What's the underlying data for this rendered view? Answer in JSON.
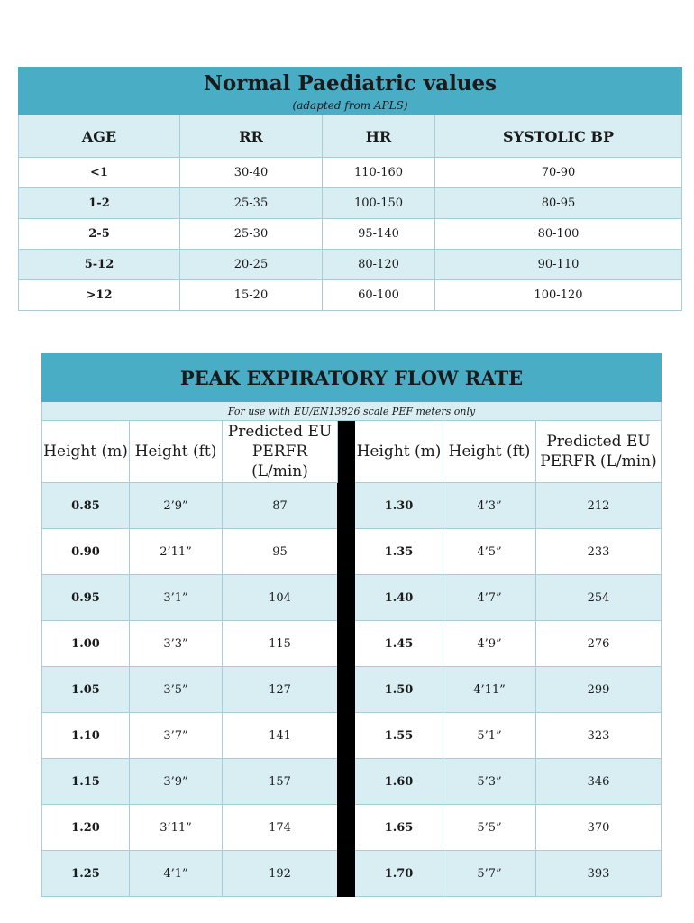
{
  "paediatric": {
    "title": "Normal Paediatric values",
    "subtitle": "(adapted from APLS)",
    "headers": [
      "AGE",
      "RR",
      "HR",
      "SYSTOLIC BP"
    ],
    "rows": [
      [
        "<1",
        "30-40",
        "110-160",
        "70-90"
      ],
      [
        "1-2",
        "25-35",
        "100-150",
        "80-95"
      ],
      [
        "2-5",
        "25-30",
        "95-140",
        "80-100"
      ],
      [
        "5-12",
        "20-25",
        "80-120",
        "90-110"
      ],
      [
        ">12",
        "15-20",
        "60-100",
        "100-120"
      ]
    ]
  },
  "pefr": {
    "title": "PEAK EXPIRATORY FLOW RATE",
    "note": "For use with EU/EN13826 scale PEF meters only",
    "headers_left": [
      "Height (m)",
      "Height (ft)",
      "Predicted EU PERFR (L/min)"
    ],
    "headers_right": [
      "Height (m)",
      "Height (ft)",
      "Predicted EU PERFR (L/min)"
    ],
    "rows": [
      [
        "0.85",
        "2’9”",
        "87",
        "1.30",
        "4’3”",
        "212"
      ],
      [
        "0.90",
        "2’11”",
        "95",
        "1.35",
        "4’5”",
        "233"
      ],
      [
        "0.95",
        "3’1”",
        "104",
        "1.40",
        "4’7”",
        "254"
      ],
      [
        "1.00",
        "3’3”",
        "115",
        "1.45",
        "4’9”",
        "276"
      ],
      [
        "1.05",
        "3’5”",
        "127",
        "1.50",
        "4’11”",
        "299"
      ],
      [
        "1.10",
        "3’7”",
        "141",
        "1.55",
        "5’1”",
        "323"
      ],
      [
        "1.15",
        "3’9”",
        "157",
        "1.60",
        "5’3”",
        "346"
      ],
      [
        "1.20",
        "3’11”",
        "174",
        "1.65",
        "5’5”",
        "370"
      ],
      [
        "1.25",
        "4’1”",
        "192",
        "1.70",
        "5’7”",
        "393"
      ]
    ]
  }
}
